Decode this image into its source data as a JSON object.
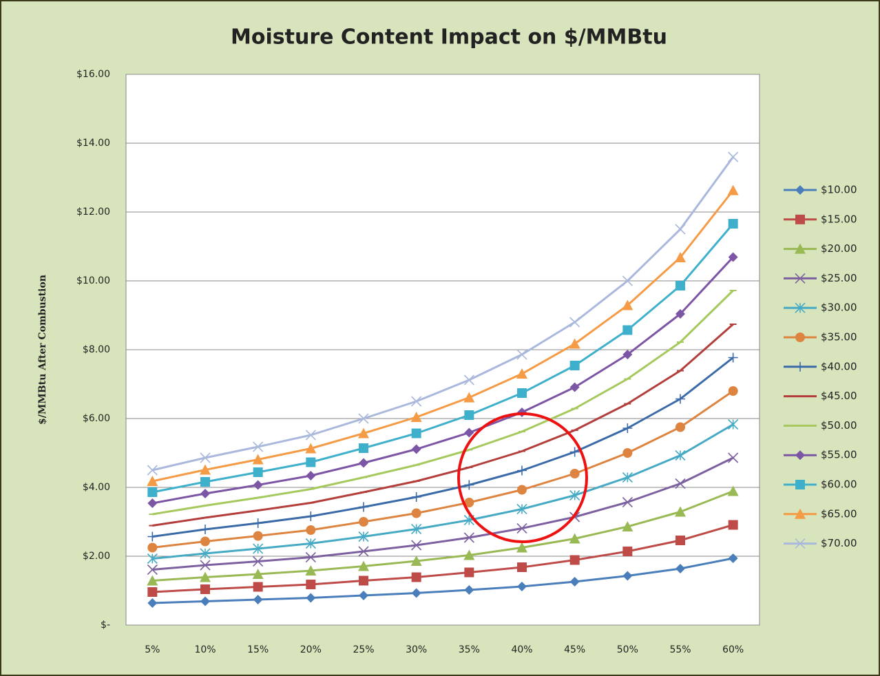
{
  "chart_data": {
    "type": "line",
    "title": "Moisture Content Impact on $/MMBtu",
    "y_label": "$/MMBtu After Combustion",
    "categories": [
      "5%",
      "10%",
      "15%",
      "20%",
      "25%",
      "30%",
      "35%",
      "40%",
      "45%",
      "50%",
      "55%",
      "60%"
    ],
    "ylim": [
      0,
      16
    ],
    "yticks": [
      {
        "value": 0,
        "label": "$-"
      },
      {
        "value": 2,
        "label": "$2.00"
      },
      {
        "value": 4,
        "label": "$4.00"
      },
      {
        "value": 6,
        "label": "$6.00"
      },
      {
        "value": 8,
        "label": "$8.00"
      },
      {
        "value": 10,
        "label": "$10.00"
      },
      {
        "value": 12,
        "label": "$12.00"
      },
      {
        "value": 14,
        "label": "$14.00"
      },
      {
        "value": 16,
        "label": "$16.00"
      }
    ],
    "grid": true,
    "legend": "right",
    "series": [
      {
        "name": "$10.00",
        "color": "#4a7ebb",
        "marker": "diamond",
        "values": [
          0.64,
          0.69,
          0.74,
          0.79,
          0.86,
          0.93,
          1.02,
          1.12,
          1.26,
          1.43,
          1.64,
          1.94
        ]
      },
      {
        "name": "$15.00",
        "color": "#be4b48",
        "marker": "square",
        "values": [
          0.96,
          1.04,
          1.11,
          1.18,
          1.29,
          1.39,
          1.53,
          1.68,
          1.89,
          2.14,
          2.46,
          2.91
        ]
      },
      {
        "name": "$20.00",
        "color": "#98b954",
        "marker": "triangle",
        "values": [
          1.29,
          1.39,
          1.48,
          1.58,
          1.71,
          1.86,
          2.03,
          2.25,
          2.51,
          2.86,
          3.29,
          3.89
        ]
      },
      {
        "name": "$25.00",
        "color": "#7d60a0",
        "marker": "x",
        "values": [
          1.61,
          1.74,
          1.85,
          1.97,
          2.14,
          2.32,
          2.54,
          2.81,
          3.14,
          3.57,
          4.11,
          4.86
        ]
      },
      {
        "name": "$30.00",
        "color": "#46aac5",
        "marker": "star",
        "values": [
          1.93,
          2.08,
          2.22,
          2.37,
          2.57,
          2.79,
          3.05,
          3.37,
          3.77,
          4.29,
          4.93,
          5.83
        ]
      },
      {
        "name": "$35.00",
        "color": "#dd8540",
        "marker": "circle",
        "values": [
          2.25,
          2.43,
          2.59,
          2.76,
          3.0,
          3.25,
          3.56,
          3.93,
          4.4,
          5.0,
          5.75,
          6.8
        ]
      },
      {
        "name": "$40.00",
        "color": "#3a6ba8",
        "marker": "plus",
        "values": [
          2.57,
          2.78,
          2.96,
          3.16,
          3.43,
          3.72,
          4.07,
          4.49,
          5.03,
          5.72,
          6.57,
          7.77
        ]
      },
      {
        "name": "$45.00",
        "color": "#b33e3b",
        "marker": "dash",
        "values": [
          2.89,
          3.12,
          3.33,
          3.55,
          3.86,
          4.18,
          4.58,
          5.05,
          5.66,
          6.43,
          7.39,
          8.74
        ]
      },
      {
        "name": "$50.00",
        "color": "#a6c95e",
        "marker": "dash",
        "values": [
          3.22,
          3.47,
          3.7,
          3.95,
          4.29,
          4.65,
          5.09,
          5.62,
          6.29,
          7.15,
          8.22,
          9.72
        ]
      },
      {
        "name": "$55.00",
        "color": "#7d55a5",
        "marker": "diamond",
        "values": [
          3.54,
          3.82,
          4.07,
          4.34,
          4.71,
          5.11,
          5.59,
          6.18,
          6.91,
          7.86,
          9.04,
          10.69
        ]
      },
      {
        "name": "$60.00",
        "color": "#3fb0cc",
        "marker": "square",
        "values": [
          3.86,
          4.16,
          4.44,
          4.73,
          5.14,
          5.57,
          6.1,
          6.74,
          7.54,
          8.57,
          9.86,
          11.66
        ]
      },
      {
        "name": "$65.00",
        "color": "#f59a45",
        "marker": "triangle",
        "values": [
          4.18,
          4.51,
          4.81,
          5.13,
          5.57,
          6.04,
          6.61,
          7.3,
          8.17,
          9.29,
          10.68,
          12.63
        ]
      },
      {
        "name": "$70.00",
        "color": "#a9b8dc",
        "marker": "x",
        "values": [
          4.5,
          4.86,
          5.18,
          5.52,
          6.0,
          6.5,
          7.12,
          7.86,
          8.8,
          10.0,
          11.5,
          13.6
        ]
      }
    ]
  }
}
